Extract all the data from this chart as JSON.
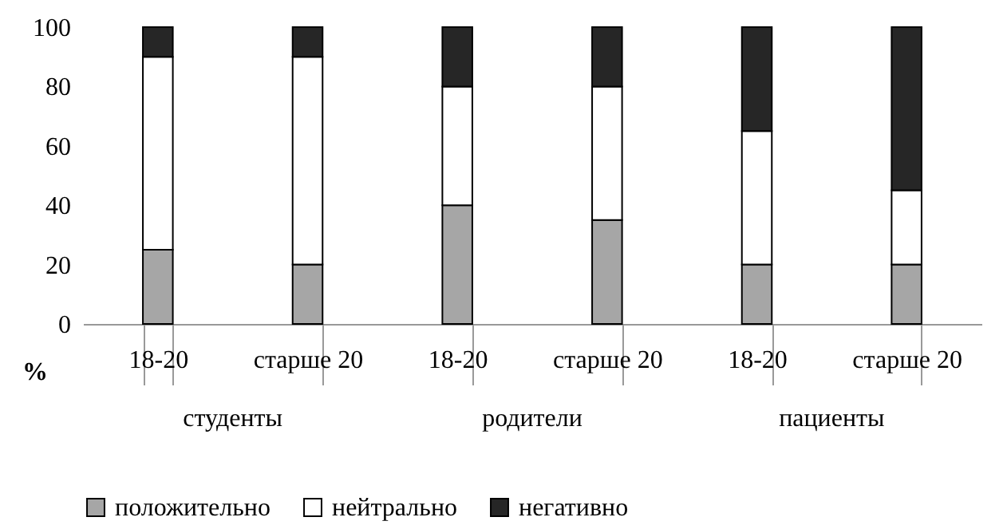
{
  "chart_data": {
    "type": "bar",
    "stacked": true,
    "ylabel": "%",
    "categories": [
      "18-20",
      "старше 20",
      "18-20",
      "старше 20",
      "18-20",
      "старше 20"
    ],
    "annotations": [
      "студенты",
      "родители",
      "пациенты"
    ],
    "series": [
      {
        "name": "положительно",
        "color": "#a6a6a6",
        "values": [
          25,
          20,
          40,
          35,
          20,
          20
        ]
      },
      {
        "name": "нейтрально",
        "color": "#ffffff",
        "values": [
          65,
          70,
          40,
          45,
          45,
          25
        ]
      },
      {
        "name": "негативно",
        "color": "#262626",
        "values": [
          10,
          10,
          20,
          20,
          35,
          55
        ]
      }
    ],
    "ylim": [
      0,
      100
    ],
    "yticks": [
      0,
      20,
      40,
      60,
      80,
      100
    ],
    "legend": "bottom"
  }
}
